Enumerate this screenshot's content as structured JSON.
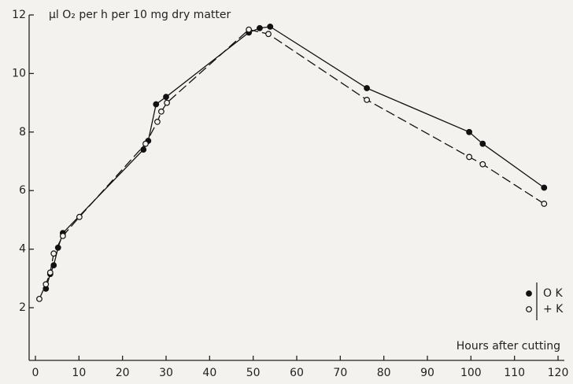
{
  "chart_data": {
    "type": "line",
    "ylabel": "µl O₂ per h per 10 mg dry matter",
    "xlabel": "Hours after cutting",
    "xlim": [
      0,
      120
    ],
    "xticks": [
      0,
      10,
      20,
      30,
      40,
      50,
      60,
      70,
      80,
      90,
      100,
      110,
      120
    ],
    "ylim": [
      0.2,
      12
    ],
    "yticks": [
      2,
      4,
      6,
      8,
      10,
      12
    ],
    "legend": "lower right",
    "series": [
      {
        "name": "O K",
        "color": "#111111",
        "marker": "filled",
        "line_style": "solid",
        "x": [
          2.4,
          3.4,
          4.2,
          5.2,
          6.3,
          24.8,
          25.9,
          27.7,
          30,
          49,
          51.5,
          53.9,
          76.1,
          99.6,
          102.7,
          116.8
        ],
        "values": [
          2.65,
          3.15,
          3.45,
          4.05,
          4.55,
          7.4,
          7.7,
          8.95,
          9.2,
          11.4,
          11.55,
          11.6,
          9.5,
          8.0,
          7.6,
          6.1
        ]
      },
      {
        "name": "+ K",
        "color": "#111111",
        "marker": "open",
        "line_style": "dashed",
        "x": [
          0.9,
          2.4,
          3.4,
          4.2,
          6.3,
          10.1,
          25.3,
          28,
          28.9,
          30.2,
          49,
          53.5,
          76.1,
          99.6,
          102.7,
          116.8
        ],
        "values": [
          2.3,
          2.8,
          3.2,
          3.85,
          4.45,
          5.1,
          7.6,
          8.35,
          8.7,
          9.0,
          11.5,
          11.35,
          9.1,
          7.15,
          6.9,
          5.55
        ]
      }
    ]
  }
}
